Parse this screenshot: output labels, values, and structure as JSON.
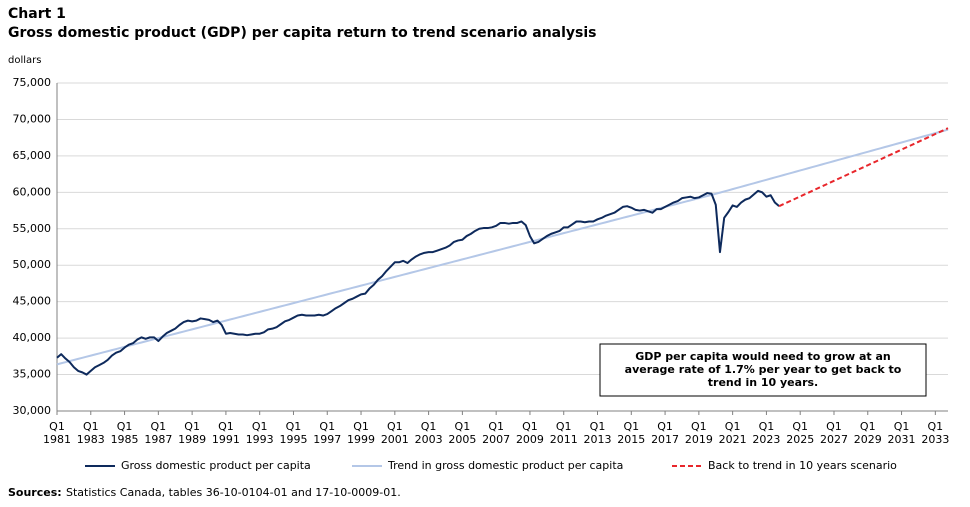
{
  "chart_data": {
    "type": "line",
    "chart_number": "Chart 1",
    "title": "Gross domestic product (GDP) per capita return to trend scenario analysis",
    "y_axis_label": "dollars",
    "annotation": [
      "GDP per capita would need to grow at an",
      "average rate of 1.7% per year to get back to",
      "trend in 10 years."
    ],
    "source_label": "Sources:",
    "source_text": "Statistics Canada, tables 36-10-0104-01 and 17-10-0009-01.",
    "grid": true,
    "legend": "bottom",
    "xlim": [
      1981,
      2033.75
    ],
    "ylim": [
      30000,
      75000
    ],
    "yticks": [
      {
        "value": 30000,
        "label": "30,000"
      },
      {
        "value": 35000,
        "label": "35,000"
      },
      {
        "value": 40000,
        "label": "40,000"
      },
      {
        "value": 45000,
        "label": "45,000"
      },
      {
        "value": 50000,
        "label": "50,000"
      },
      {
        "value": 55000,
        "label": "55,000"
      },
      {
        "value": 60000,
        "label": "60,000"
      },
      {
        "value": 65000,
        "label": "65,000"
      },
      {
        "value": 70000,
        "label": "70,000"
      },
      {
        "value": 75000,
        "label": "75,000"
      }
    ],
    "xticks": [
      {
        "value": 1981,
        "label": [
          "Q1",
          "1981"
        ]
      },
      {
        "value": 1983,
        "label": [
          "Q1",
          "1983"
        ]
      },
      {
        "value": 1985,
        "label": [
          "Q1",
          "1985"
        ]
      },
      {
        "value": 1987,
        "label": [
          "Q1",
          "1987"
        ]
      },
      {
        "value": 1989,
        "label": [
          "Q1",
          "1989"
        ]
      },
      {
        "value": 1991,
        "label": [
          "Q1",
          "1991"
        ]
      },
      {
        "value": 1993,
        "label": [
          "Q1",
          "1993"
        ]
      },
      {
        "value": 1995,
        "label": [
          "Q1",
          "1995"
        ]
      },
      {
        "value": 1997,
        "label": [
          "Q1",
          "1997"
        ]
      },
      {
        "value": 1999,
        "label": [
          "Q1",
          "1999"
        ]
      },
      {
        "value": 2001,
        "label": [
          "Q1",
          "2001"
        ]
      },
      {
        "value": 2003,
        "label": [
          "Q1",
          "2003"
        ]
      },
      {
        "value": 2005,
        "label": [
          "Q1",
          "2005"
        ]
      },
      {
        "value": 2007,
        "label": [
          "Q1",
          "2007"
        ]
      },
      {
        "value": 2009,
        "label": [
          "Q1",
          "2009"
        ]
      },
      {
        "value": 2011,
        "label": [
          "Q1",
          "2011"
        ]
      },
      {
        "value": 2013,
        "label": [
          "Q1",
          "2013"
        ]
      },
      {
        "value": 2015,
        "label": [
          "Q1",
          "2015"
        ]
      },
      {
        "value": 2017,
        "label": [
          "Q1",
          "2017"
        ]
      },
      {
        "value": 2019,
        "label": [
          "Q1",
          "2019"
        ]
      },
      {
        "value": 2021,
        "label": [
          "Q1",
          "2021"
        ]
      },
      {
        "value": 2023,
        "label": [
          "Q1",
          "2023"
        ]
      },
      {
        "value": 2025,
        "label": [
          "Q1",
          "2025"
        ]
      },
      {
        "value": 2027,
        "label": [
          "Q1",
          "2027"
        ]
      },
      {
        "value": 2029,
        "label": [
          "Q1",
          "2029"
        ]
      },
      {
        "value": 2031,
        "label": [
          "Q1",
          "2031"
        ]
      },
      {
        "value": 2033,
        "label": [
          "Q1",
          "2033"
        ]
      }
    ],
    "x": [
      1981,
      1981.25,
      1981.5,
      1981.75,
      1982,
      1982.25,
      1982.5,
      1982.75,
      1983,
      1983.25,
      1983.5,
      1983.75,
      1984,
      1984.25,
      1984.5,
      1984.75,
      1985,
      1985.25,
      1985.5,
      1985.75,
      1986,
      1986.25,
      1986.5,
      1986.75,
      1987,
      1987.25,
      1987.5,
      1987.75,
      1988,
      1988.25,
      1988.5,
      1988.75,
      1989,
      1989.25,
      1989.5,
      1989.75,
      1990,
      1990.25,
      1990.5,
      1990.75,
      1991,
      1991.25,
      1991.5,
      1991.75,
      1992,
      1992.25,
      1992.5,
      1992.75,
      1993,
      1993.25,
      1993.5,
      1993.75,
      1994,
      1994.25,
      1994.5,
      1994.75,
      1995,
      1995.25,
      1995.5,
      1995.75,
      1996,
      1996.25,
      1996.5,
      1996.75,
      1997,
      1997.25,
      1997.5,
      1997.75,
      1998,
      1998.25,
      1998.5,
      1998.75,
      1999,
      1999.25,
      1999.5,
      1999.75,
      2000,
      2000.25,
      2000.5,
      2000.75,
      2001,
      2001.25,
      2001.5,
      2001.75,
      2002,
      2002.25,
      2002.5,
      2002.75,
      2003,
      2003.25,
      2003.5,
      2003.75,
      2004,
      2004.25,
      2004.5,
      2004.75,
      2005,
      2005.25,
      2005.5,
      2005.75,
      2006,
      2006.25,
      2006.5,
      2006.75,
      2007,
      2007.25,
      2007.5,
      2007.75,
      2008,
      2008.25,
      2008.5,
      2008.75,
      2009,
      2009.25,
      2009.5,
      2009.75,
      2010,
      2010.25,
      2010.5,
      2010.75,
      2011,
      2011.25,
      2011.5,
      2011.75,
      2012,
      2012.25,
      2012.5,
      2012.75,
      2013,
      2013.25,
      2013.5,
      2013.75,
      2014,
      2014.25,
      2014.5,
      2014.75,
      2015,
      2015.25,
      2015.5,
      2015.75,
      2016,
      2016.25,
      2016.5,
      2016.75,
      2017,
      2017.25,
      2017.5,
      2017.75,
      2018,
      2018.25,
      2018.5,
      2018.75,
      2019,
      2019.25,
      2019.5,
      2019.75,
      2020,
      2020.25,
      2020.5,
      2020.75,
      2021,
      2021.25,
      2021.5,
      2021.75,
      2022,
      2022.25,
      2022.5,
      2022.75,
      2023,
      2023.25,
      2023.5,
      2023.75,
      2024,
      2024.25,
      2024.5,
      2024.75,
      2025,
      2025.25,
      2025.5,
      2025.75,
      2026,
      2026.25,
      2026.5,
      2026.75,
      2027,
      2027.25,
      2027.5,
      2027.75,
      2028,
      2028.25,
      2028.5,
      2028.75,
      2029,
      2029.25,
      2029.5,
      2029.75,
      2030,
      2030.25,
      2030.5,
      2030.75,
      2031,
      2031.25,
      2031.5,
      2031.75,
      2032,
      2032.25,
      2032.5,
      2032.75,
      2033,
      2033.25,
      2033.5,
      2033.75
    ],
    "series": [
      {
        "name": "Gross domestic product per capita",
        "color": "#0e2a5c",
        "dash": "none",
        "width": 2,
        "values": [
          37300,
          37800,
          37200,
          36700,
          36000,
          35500,
          35300,
          35000,
          35500,
          36000,
          36300,
          36600,
          37000,
          37600,
          38000,
          38200,
          38700,
          39100,
          39300,
          39800,
          40100,
          39900,
          40100,
          40100,
          39600,
          40200,
          40700,
          41000,
          41300,
          41800,
          42200,
          42400,
          42300,
          42400,
          42700,
          42600,
          42500,
          42200,
          42400,
          41800,
          40600,
          40700,
          40600,
          40500,
          40500,
          40400,
          40500,
          40600,
          40600,
          40800,
          41200,
          41300,
          41500,
          41900,
          42300,
          42500,
          42800,
          43100,
          43200,
          43100,
          43100,
          43100,
          43200,
          43100,
          43300,
          43700,
          44100,
          44400,
          44800,
          45200,
          45400,
          45700,
          46000,
          46100,
          46800,
          47300,
          48000,
          48500,
          49200,
          49800,
          50400,
          50400,
          50600,
          50300,
          50800,
          51200,
          51500,
          51700,
          51800,
          51800,
          52000,
          52200,
          52400,
          52700,
          53200,
          53400,
          53500,
          54000,
          54300,
          54700,
          55000,
          55100,
          55100,
          55200,
          55400,
          55800,
          55800,
          55700,
          55800,
          55800,
          56000,
          55500,
          54000,
          53000,
          53200,
          53600,
          54000,
          54300,
          54500,
          54700,
          55200,
          55200,
          55600,
          56000,
          56000,
          55900,
          56000,
          56000,
          56300,
          56500,
          56800,
          57000,
          57200,
          57600,
          58000,
          58100,
          57900,
          57600,
          57500,
          57600,
          57400,
          57200,
          57700,
          57700,
          58000,
          58300,
          58600,
          58800,
          59200,
          59300,
          59400,
          59200,
          59300,
          59600,
          59900,
          59800,
          58300,
          51800,
          56500,
          57300,
          58200,
          58000,
          58600,
          59000,
          59200,
          59700,
          60200,
          60000,
          59400,
          59600,
          58600,
          58100,
          null,
          null,
          null,
          null,
          null,
          null,
          null,
          null,
          null,
          null,
          null,
          null,
          null,
          null,
          null,
          null,
          null,
          null,
          null,
          null,
          null,
          null,
          null,
          null,
          null,
          null,
          null,
          null,
          null,
          null,
          null,
          null,
          null,
          null,
          null,
          null,
          null,
          null,
          null,
          null
        ]
      },
      {
        "name": "Trend in gross domestic product per capita",
        "color": "#b4c7e7",
        "dash": "none",
        "width": 2,
        "values": [
          36400,
          36550,
          36700,
          36850,
          37000,
          37150,
          37300,
          37450,
          37600,
          37750,
          37900,
          38050,
          38200,
          38350,
          38500,
          38650,
          38800,
          38950,
          39100,
          39250,
          39400,
          39550,
          39700,
          39850,
          40000,
          40150,
          40300,
          40450,
          40600,
          40750,
          40900,
          41050,
          41200,
          41350,
          41500,
          41650,
          41800,
          41950,
          42100,
          42250,
          42400,
          42550,
          42700,
          42850,
          43000,
          43150,
          43300,
          43450,
          43600,
          43750,
          43900,
          44050,
          44200,
          44350,
          44500,
          44650,
          44800,
          44950,
          45100,
          45250,
          45400,
          45550,
          45700,
          45850,
          46000,
          46150,
          46300,
          46450,
          46600,
          46750,
          46900,
          47050,
          47200,
          47350,
          47500,
          47650,
          47800,
          47950,
          48100,
          48250,
          48400,
          48550,
          48700,
          48850,
          49000,
          49150,
          49300,
          49450,
          49600,
          49750,
          49900,
          50050,
          50200,
          50350,
          50500,
          50650,
          50800,
          50950,
          51100,
          51250,
          51400,
          51550,
          51700,
          51850,
          52000,
          52150,
          52300,
          52450,
          52600,
          52750,
          52900,
          53050,
          53200,
          53350,
          53500,
          53650,
          53800,
          53950,
          54100,
          54250,
          54400,
          54550,
          54700,
          54850,
          55000,
          55150,
          55300,
          55450,
          55600,
          55750,
          55900,
          56050,
          56200,
          56350,
          56500,
          56650,
          56800,
          56950,
          57100,
          57250,
          57400,
          57550,
          57700,
          57850,
          58000,
          58150,
          58300,
          58450,
          58600,
          58750,
          58900,
          59050,
          59200,
          59350,
          59500,
          59650,
          59800,
          59960,
          60120,
          60280,
          60440,
          60600,
          60760,
          60920,
          61080,
          61240,
          61400,
          61560,
          61720,
          61880,
          62040,
          62200,
          62360,
          62520,
          62680,
          62840,
          63000,
          63160,
          63320,
          63480,
          63640,
          63800,
          63960,
          64120,
          64280,
          64440,
          64600,
          64760,
          64920,
          65080,
          65240,
          65400,
          65560,
          65720,
          65880,
          66040,
          66200,
          66360,
          66520,
          66680,
          66840,
          67000,
          67160,
          67320,
          67480,
          67640,
          67800,
          67960,
          68120,
          68280,
          68440,
          68600
        ]
      },
      {
        "name": "Back to trend in 10 years scenario",
        "color": "#e8262b",
        "dash": "5,3",
        "width": 2,
        "values": [
          null,
          null,
          null,
          null,
          null,
          null,
          null,
          null,
          null,
          null,
          null,
          null,
          null,
          null,
          null,
          null,
          null,
          null,
          null,
          null,
          null,
          null,
          null,
          null,
          null,
          null,
          null,
          null,
          null,
          null,
          null,
          null,
          null,
          null,
          null,
          null,
          null,
          null,
          null,
          null,
          null,
          null,
          null,
          null,
          null,
          null,
          null,
          null,
          null,
          null,
          null,
          null,
          null,
          null,
          null,
          null,
          null,
          null,
          null,
          null,
          null,
          null,
          null,
          null,
          null,
          null,
          null,
          null,
          null,
          null,
          null,
          null,
          null,
          null,
          null,
          null,
          null,
          null,
          null,
          null,
          null,
          null,
          null,
          null,
          null,
          null,
          null,
          null,
          null,
          null,
          null,
          null,
          null,
          null,
          null,
          null,
          null,
          null,
          null,
          null,
          null,
          null,
          null,
          null,
          null,
          null,
          null,
          null,
          null,
          null,
          null,
          null,
          null,
          null,
          null,
          null,
          null,
          null,
          null,
          null,
          null,
          null,
          null,
          null,
          null,
          null,
          null,
          null,
          null,
          null,
          null,
          null,
          null,
          null,
          null,
          null,
          null,
          null,
          null,
          null,
          null,
          null,
          null,
          null,
          null,
          null,
          null,
          null,
          null,
          null,
          null,
          null,
          null,
          null,
          null,
          null,
          null,
          null,
          null,
          null,
          null,
          null,
          null,
          null,
          null,
          null,
          null,
          null,
          null,
          null,
          null,
          58100,
          58370,
          58640,
          58900,
          59170,
          59440,
          59710,
          59970,
          60240,
          60510,
          60780,
          61040,
          61310,
          61580,
          61850,
          62110,
          62380,
          62650,
          62920,
          63180,
          63450,
          63720,
          63990,
          64250,
          64520,
          64790,
          65060,
          65320,
          65590,
          65860,
          66130,
          66390,
          66660,
          66930,
          67200,
          67460,
          67730,
          68000,
          68270,
          68530,
          68800
        ]
      }
    ]
  }
}
